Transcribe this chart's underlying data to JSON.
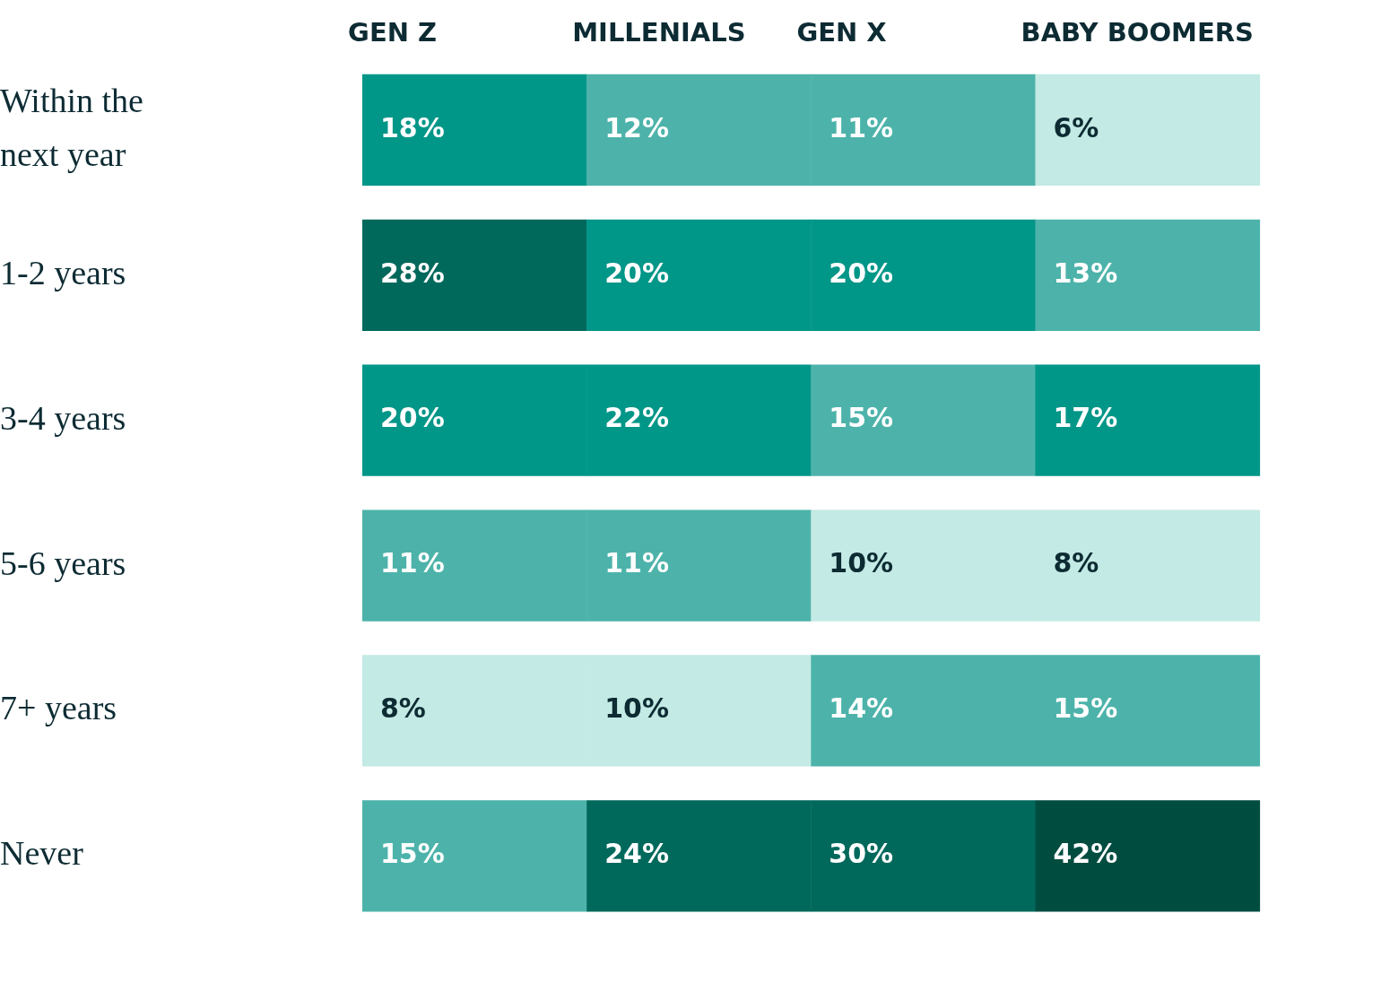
{
  "chart_data": {
    "type": "heatmap",
    "categories": [
      "GEN Z",
      "MILLENIALS",
      "GEN X",
      "BABY BOOMERS"
    ],
    "y_categories": [
      "Within the next year",
      "1-2 years",
      "3-4 years",
      "5-6 years",
      "7+ years",
      "Never"
    ],
    "cells": [
      [
        18,
        12,
        11,
        6
      ],
      [
        28,
        20,
        20,
        13
      ],
      [
        20,
        22,
        15,
        17
      ],
      [
        11,
        11,
        10,
        8
      ],
      [
        8,
        10,
        14,
        15
      ],
      [
        15,
        24,
        30,
        42
      ]
    ],
    "cell_labels": [
      [
        "18%",
        "12%",
        "11%",
        "6%"
      ],
      [
        "28%",
        "20%",
        "20%",
        "13%"
      ],
      [
        "20%",
        "22%",
        "15%",
        "17%"
      ],
      [
        "11%",
        "11%",
        "10%",
        "8%"
      ],
      [
        "8%",
        "10%",
        "14%",
        "15%"
      ],
      [
        "15%",
        "24%",
        "30%",
        "42%"
      ]
    ],
    "colors": [
      [
        "#009688",
        "#4db3aa",
        "#4db3aa",
        "#c3eae4"
      ],
      [
        "#00695c",
        "#009688",
        "#009688",
        "#4db3aa"
      ],
      [
        "#009688",
        "#009688",
        "#4db3aa",
        "#009688"
      ],
      [
        "#4db3aa",
        "#4db3aa",
        "#c3eae4",
        "#c3eae4"
      ],
      [
        "#c3eae4",
        "#c3eae4",
        "#4db3aa",
        "#4db3aa"
      ],
      [
        "#4db3aa",
        "#00695c",
        "#00695c",
        "#004d40"
      ]
    ]
  }
}
